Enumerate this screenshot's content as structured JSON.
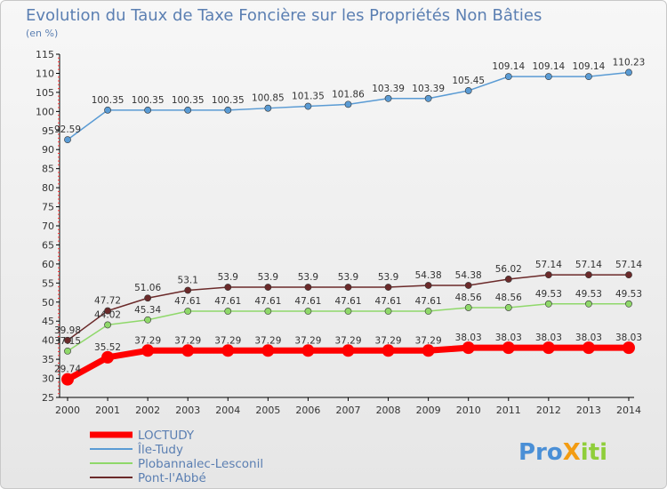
{
  "chart_data": {
    "type": "line",
    "title": "Evolution du Taux de Taxe Foncière sur les Propriétés Non Bâties",
    "subtitle": "(en %)",
    "xlabel": "",
    "ylabel": "",
    "categories": [
      "2000",
      "2001",
      "2002",
      "2003",
      "2004",
      "2005",
      "2006",
      "2007",
      "2008",
      "2009",
      "2010",
      "2011",
      "2012",
      "2013",
      "2014"
    ],
    "ylim": [
      25,
      115
    ],
    "yticks": [
      25,
      30,
      35,
      40,
      45,
      50,
      55,
      60,
      65,
      70,
      75,
      80,
      85,
      90,
      95,
      100,
      105,
      110,
      115
    ],
    "grid": false,
    "legend_position": "bottom-left",
    "series": [
      {
        "name": "LOCTUDY",
        "color": "#ff0000",
        "values": [
          29.74,
          35.52,
          37.29,
          37.29,
          37.29,
          37.29,
          37.29,
          37.29,
          37.29,
          37.29,
          38.03,
          38.03,
          38.03,
          38.03,
          38.03
        ],
        "labels": [
          "29.74",
          "35.52",
          "37.29",
          "37.29",
          "37.29",
          "37.29",
          "37.29",
          "37.29",
          "37.29",
          "37.29",
          "38.03",
          "38.03",
          "38.03",
          "38.03",
          "38.03"
        ]
      },
      {
        "name": "Île-Tudy",
        "color": "#5a9bd4",
        "values": [
          92.59,
          100.35,
          100.35,
          100.35,
          100.35,
          100.85,
          101.35,
          101.86,
          103.39,
          103.39,
          105.45,
          109.14,
          109.14,
          109.14,
          110.23
        ],
        "labels": [
          "92.59",
          "100.35",
          "100.35",
          "100.35",
          "100.35",
          "100.85",
          "101.35",
          "101.86",
          "103.39",
          "103.39",
          "105.45",
          "109.14",
          "109.14",
          "109.14",
          "110.23"
        ]
      },
      {
        "name": "Plobannalec-Lesconil",
        "color": "#8fd86a",
        "values": [
          37.15,
          44.02,
          45.34,
          47.61,
          47.61,
          47.61,
          47.61,
          47.61,
          47.61,
          47.61,
          48.56,
          48.56,
          49.53,
          49.53,
          49.53
        ],
        "labels": [
          "37.15",
          "44.02",
          "45.34",
          "47.61",
          "47.61",
          "47.61",
          "47.61",
          "47.61",
          "47.61",
          "47.61",
          "48.56",
          "48.56",
          "49.53",
          "49.53",
          "49.53"
        ]
      },
      {
        "name": "Pont-l'Abbé",
        "color": "#6b2a2a",
        "values": [
          39.98,
          47.72,
          51.06,
          53.1,
          53.9,
          53.9,
          53.9,
          53.9,
          53.9,
          54.38,
          54.38,
          56.02,
          57.14,
          57.14,
          57.14
        ],
        "labels": [
          "39.98",
          "47.72",
          "51.06",
          "53.1",
          "53.9",
          "53.9",
          "53.9",
          "53.9",
          "53.9",
          "54.38",
          "54.38",
          "56.02",
          "57.14",
          "57.14",
          "57.14"
        ]
      }
    ]
  },
  "brand": {
    "text": "ProXiti",
    "parts": [
      "Pro",
      "X",
      "iti"
    ],
    "colors": [
      "#4a8fd6",
      "#f39c12",
      "#8fce3a"
    ]
  }
}
